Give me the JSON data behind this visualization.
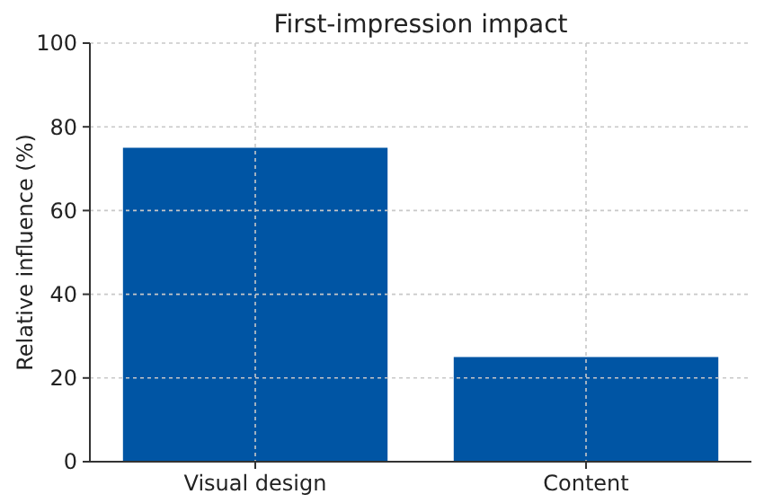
{
  "chart_data": {
    "type": "bar",
    "title": "First-impression impact",
    "ylabel": "Relative influence (%)",
    "categories": [
      "Visual design",
      "Content"
    ],
    "values": [
      75,
      25
    ],
    "color": "#0055a4",
    "ylim": [
      0,
      100
    ],
    "yticks": [
      0,
      20,
      40,
      60,
      80,
      100
    ],
    "grid": true
  }
}
